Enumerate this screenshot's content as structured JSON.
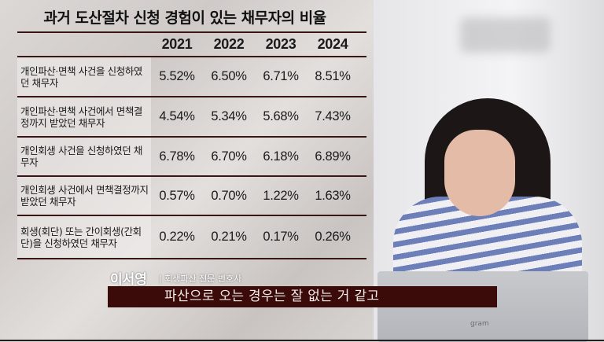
{
  "title": "과거 도산절차 신청 경험이 있는 채무자의 비율",
  "table": {
    "headers": [
      "2021",
      "2022",
      "2023",
      "2024"
    ],
    "rows": [
      {
        "label": "개인파산·면책 사건을 신청하였던 채무자",
        "values": [
          "5.52%",
          "6.50%",
          "6.71%",
          "8.51%"
        ]
      },
      {
        "label": "개인파산·면책 사건에서 면책결정까지 받았던 채무자",
        "values": [
          "4.54%",
          "5.34%",
          "5.68%",
          "7.43%"
        ]
      },
      {
        "label": "개인회생 사건을 신청하였던 채무자",
        "values": [
          "6.78%",
          "6.70%",
          "6.18%",
          "6.89%"
        ]
      },
      {
        "label": "개인회생 사건에서 면책결정까지 받았던 채무자",
        "values": [
          "0.57%",
          "0.70%",
          "1.22%",
          "1.63%"
        ]
      },
      {
        "label": "회생(회단) 또는 간이회생(간회단)을 신청하였던 채무자",
        "values": [
          "0.22%",
          "0.21%",
          "0.17%",
          "0.26%"
        ]
      }
    ]
  },
  "speaker": {
    "name": "이서영",
    "role": "| 회생파산 전문 변호사"
  },
  "subtitle": "파산으로 오는 경우는 잘 없는 거 같고",
  "laptop_brand": "gram",
  "colors": {
    "table_line": "#3a1614",
    "subtitle_bg": "#3a0b08"
  }
}
